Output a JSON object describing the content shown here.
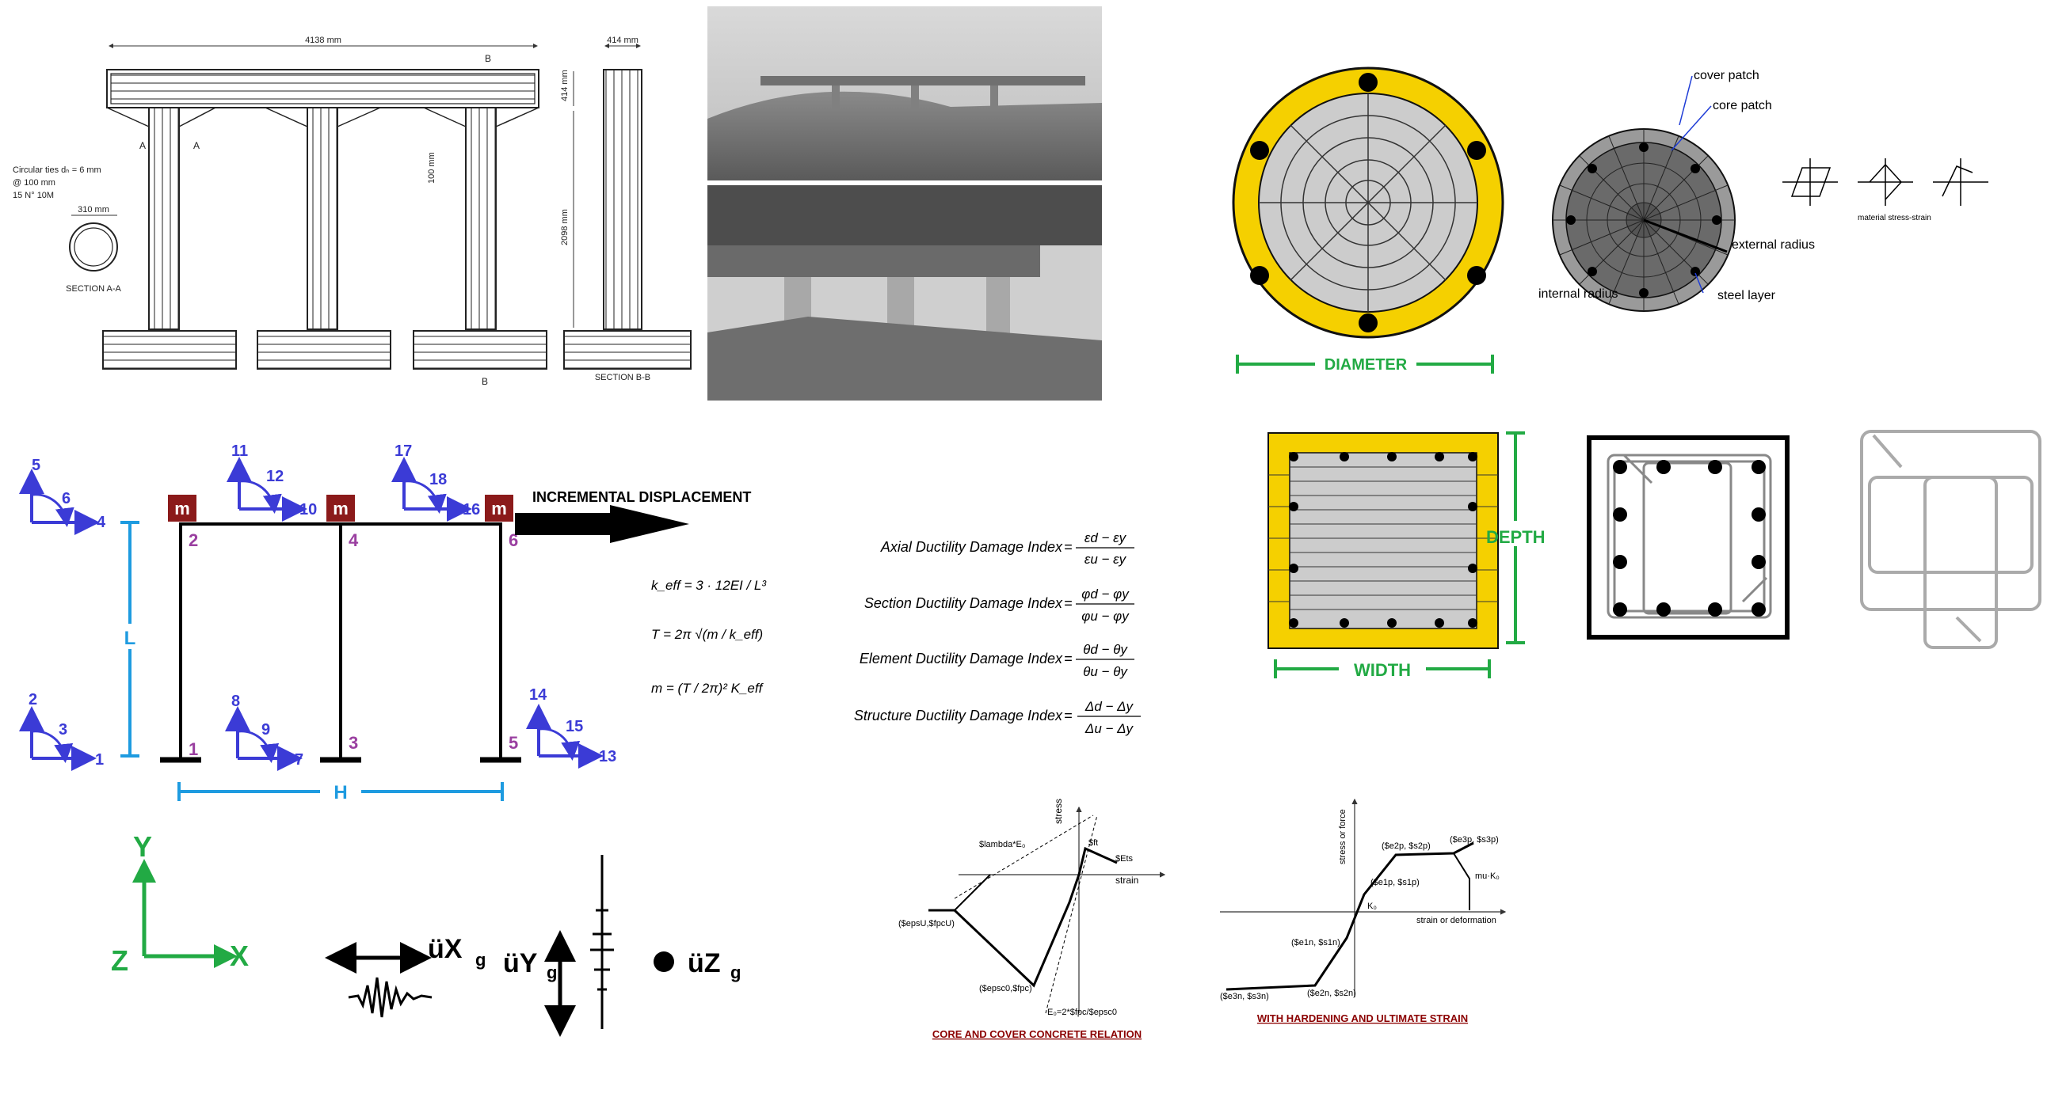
{
  "drawing": {
    "width_dim": "4138 mm",
    "col_width_dim": "414 mm",
    "beam_depth_dim": "414 mm",
    "col_height_dim": "2098 mm",
    "tie_spacing_dim": "100 mm",
    "section_a_label": "A",
    "section_b_label": "B",
    "ties_note": [
      "Circular ties dₕ = 6 mm",
      "@ 100 mm",
      "15 N° 10M"
    ],
    "circle_dia": "310 mm",
    "section_aa": "SECTION A-A",
    "section_bb": "SECTION B-B"
  },
  "circular_section": {
    "dimension_label": "DIAMETER",
    "yellow": "#f5d000",
    "green": "#22aa44"
  },
  "fiber_section": {
    "labels": {
      "cover": "cover patch",
      "core": "core patch",
      "external": "external radius",
      "internal": "internal radius",
      "steel": "steel layer"
    },
    "material_caption": "material stress-strain"
  },
  "rect_section": {
    "depth_label": "DEPTH",
    "width_label": "WIDTH"
  },
  "frame": {
    "mass_label": "m",
    "load_label": "INCREMENTAL DISPLACEMENT",
    "height_label": "L",
    "width_label": "H",
    "dof_left_top": [
      "5",
      "6",
      "4"
    ],
    "dof_mid_top": [
      "11",
      "12",
      "10"
    ],
    "dof_right_top": [
      "17",
      "18",
      "16"
    ],
    "dof_left_bot": [
      "2",
      "3",
      "1"
    ],
    "dof_mid_bot": [
      "8",
      "9",
      "7"
    ],
    "dof_right_bot": [
      "14",
      "15",
      "13"
    ],
    "nodes": [
      "1",
      "2",
      "3",
      "4",
      "5",
      "6"
    ],
    "formulas": {
      "keff": "k_eff = 3 · 12EI / L³",
      "period": "T = 2π √(m / k_eff)",
      "mass": "m = (T / 2π)² K_eff"
    }
  },
  "damage_indices": [
    {
      "name": "Axial Ductility Damage Index",
      "num": "εd − εy",
      "den": "εu − εy"
    },
    {
      "name": "Section Ductility Damage Index",
      "num": "φd − φy",
      "den": "φu − φy"
    },
    {
      "name": "Element Ductility Damage Index",
      "num": "θd − θy",
      "den": "θu − θy"
    },
    {
      "name": "Structure Ductility Damage Index",
      "num": "Δd − Δy",
      "den": "Δu − Δy"
    }
  ],
  "axes": {
    "x": "X",
    "y": "Y",
    "z": "Z",
    "gx": "üX",
    "gy": "üY",
    "gz": "üZ",
    "sub": "g"
  },
  "concrete_plot": {
    "stress": "stress",
    "strain": "strain",
    "lambda": "$lambda*E₀",
    "ft": "$ft",
    "ets": "$Ets",
    "epsU": "($epsU,$fpcU)",
    "epsc0": "($epsc0,$fpc)",
    "e0": "E₀=2*$fpc/$epsc0",
    "caption": "CORE AND COVER CONCRETE RELATION"
  },
  "hardening_plot": {
    "y_axis": "stress or force",
    "x_axis": "strain or deformation",
    "p1": "($e1p, $s1p)",
    "p2": "($e2p, $s2p)",
    "p3": "($e3p, $s3p)",
    "n1": "($e1n, $s1n)",
    "n2": "($e2n, $s2n)",
    "n3": "($e3n, $s3n)",
    "k0": "K₀",
    "mu": "mu·K₀",
    "caption": "WITH HARDENING AND ULTIMATE STRAIN"
  },
  "colors": {
    "dof_blue": "#3b3bd6",
    "node_purple": "#9a3fa0",
    "mass_red": "#8b1a1a",
    "light_blue": "#1e9be0",
    "axis_green": "#22aa44",
    "caption_red": "#8b0000"
  }
}
